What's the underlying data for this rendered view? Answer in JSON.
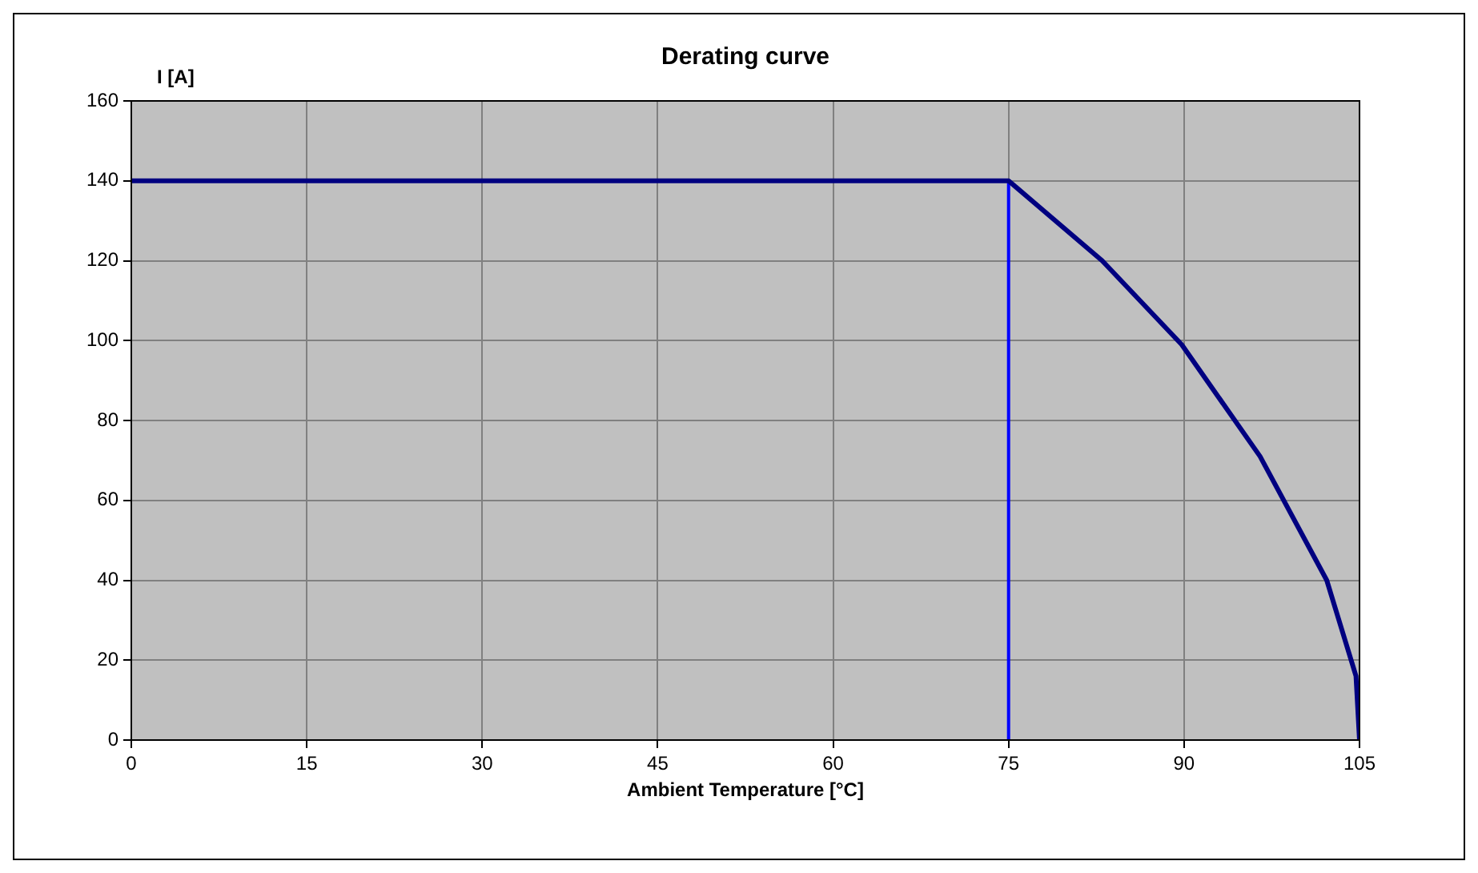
{
  "chart_data": {
    "type": "line",
    "title": "Derating curve",
    "xlabel": "Ambient Temperature [°C]",
    "ylabel": "I [A]",
    "xlim": [
      0,
      105
    ],
    "xticks": [
      0,
      15,
      30,
      45,
      60,
      75,
      90,
      105
    ],
    "ylim": [
      0,
      160
    ],
    "yticks": [
      0,
      20,
      40,
      60,
      80,
      100,
      120,
      140,
      160
    ],
    "grid": true,
    "legend": false,
    "marker": "none",
    "line_style": "solid",
    "series": [
      {
        "color": "#000080",
        "x": [
          0,
          75,
          83,
          89.8,
          96.5,
          102.2,
          104.7,
          105
        ],
        "values": [
          140,
          140,
          120,
          99,
          71,
          40,
          16,
          0
        ]
      },
      {
        "color": "#0000ff",
        "x": [
          75,
          75
        ],
        "values": [
          0,
          140
        ]
      }
    ]
  }
}
